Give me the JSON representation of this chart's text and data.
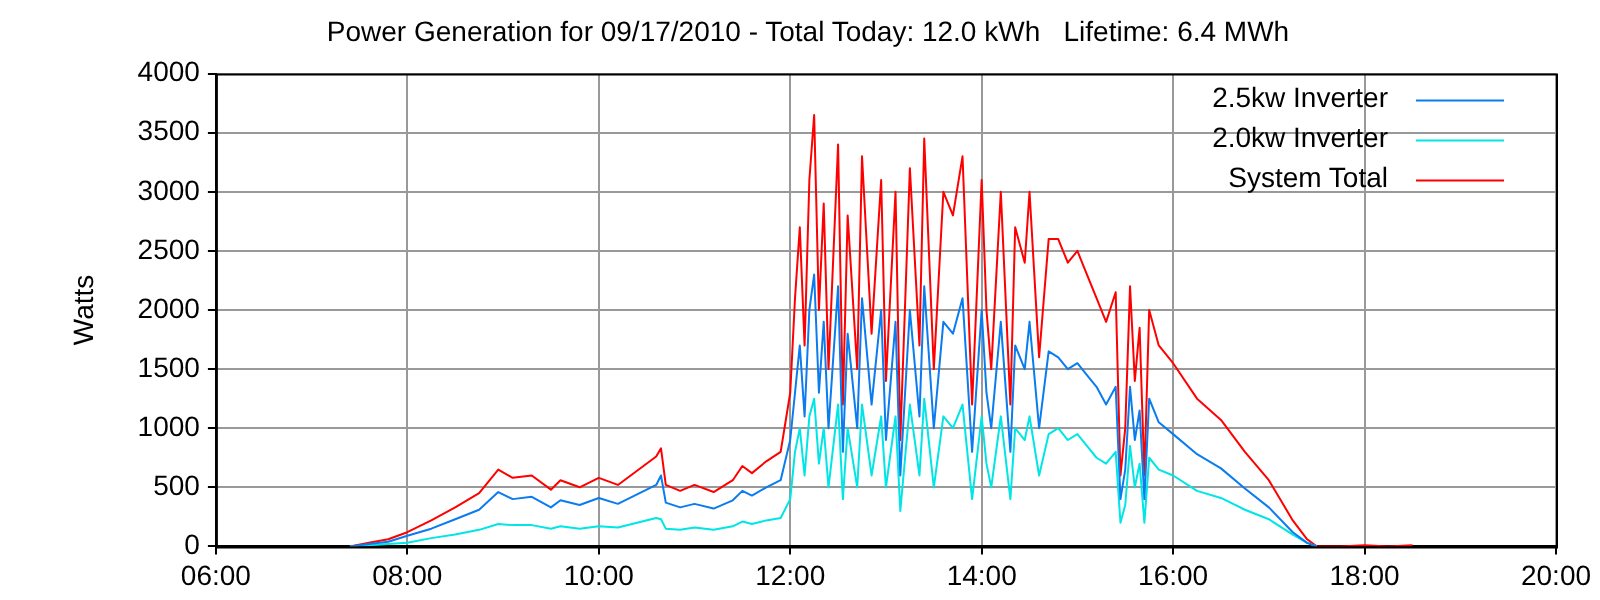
{
  "chart_data": {
    "type": "line",
    "title": "Power Generation for 09/17/2010 - Total Today: 12.0 kWh   Lifetime: 6.4 MWh",
    "ylabel": "Watts",
    "x": [
      7.4,
      7.6,
      7.8,
      8.0,
      8.25,
      8.5,
      8.75,
      8.95,
      9.1,
      9.3,
      9.5,
      9.6,
      9.8,
      10.0,
      10.2,
      10.4,
      10.6,
      10.65,
      10.7,
      10.85,
      11.0,
      11.2,
      11.4,
      11.5,
      11.6,
      11.75,
      11.9,
      12.0,
      12.05,
      12.1,
      12.15,
      12.2,
      12.25,
      12.3,
      12.35,
      12.4,
      12.5,
      12.55,
      12.6,
      12.7,
      12.75,
      12.85,
      12.95,
      13.0,
      13.1,
      13.15,
      13.25,
      13.35,
      13.4,
      13.5,
      13.6,
      13.7,
      13.8,
      13.9,
      14.0,
      14.05,
      14.1,
      14.2,
      14.3,
      14.35,
      14.45,
      14.5,
      14.6,
      14.7,
      14.8,
      14.9,
      15.0,
      15.1,
      15.2,
      15.3,
      15.4,
      15.45,
      15.5,
      15.55,
      15.6,
      15.65,
      15.7,
      15.75,
      15.85,
      16.0,
      16.25,
      16.5,
      16.75,
      17.0,
      17.25,
      17.4,
      17.5,
      17.75,
      18.0,
      18.25,
      18.5
    ],
    "series": [
      {
        "name": "2.5kw Inverter",
        "color": "#0a7cf0",
        "values": [
          0,
          20,
          40,
          90,
          150,
          230,
          310,
          460,
          400,
          420,
          330,
          390,
          350,
          410,
          360,
          440,
          520,
          600,
          370,
          330,
          360,
          320,
          390,
          470,
          430,
          500,
          560,
          900,
          1300,
          1700,
          1100,
          2000,
          2300,
          1300,
          1900,
          1000,
          2200,
          800,
          1800,
          1000,
          2100,
          1200,
          2000,
          900,
          1900,
          600,
          2000,
          1100,
          2200,
          1000,
          1900,
          1800,
          2100,
          800,
          2000,
          1300,
          1000,
          1900,
          800,
          1700,
          1500,
          1900,
          1000,
          1650,
          1600,
          1500,
          1550,
          1450,
          1350,
          1200,
          1350,
          400,
          650,
          1350,
          900,
          1150,
          400,
          1250,
          1050,
          950,
          780,
          660,
          490,
          330,
          120,
          30,
          0,
          null,
          null,
          null,
          null
        ]
      },
      {
        "name": "2.0kw Inverter",
        "color": "#00e5e5",
        "values": [
          0,
          10,
          20,
          30,
          70,
          100,
          140,
          190,
          180,
          180,
          150,
          170,
          150,
          170,
          160,
          200,
          240,
          230,
          150,
          140,
          160,
          140,
          170,
          210,
          190,
          220,
          240,
          400,
          800,
          1000,
          600,
          1100,
          1250,
          700,
          1000,
          500,
          1200,
          400,
          1000,
          500,
          1200,
          600,
          1100,
          500,
          1100,
          300,
          1200,
          600,
          1250,
          500,
          1100,
          1000,
          1200,
          400,
          1100,
          700,
          500,
          1100,
          400,
          1000,
          900,
          1100,
          600,
          950,
          1000,
          900,
          950,
          850,
          750,
          700,
          800,
          200,
          350,
          850,
          500,
          700,
          200,
          750,
          650,
          600,
          470,
          410,
          310,
          230,
          100,
          30,
          0,
          null,
          null,
          null,
          null
        ]
      },
      {
        "name": "System Total",
        "color": "#ff0000",
        "values": [
          0,
          30,
          60,
          120,
          220,
          330,
          450,
          650,
          580,
          600,
          480,
          560,
          500,
          580,
          520,
          640,
          760,
          830,
          520,
          470,
          520,
          460,
          560,
          680,
          620,
          720,
          800,
          1300,
          2100,
          2700,
          1700,
          3100,
          3650,
          2000,
          2900,
          1500,
          3400,
          1200,
          2800,
          1500,
          3300,
          1800,
          3100,
          1400,
          3000,
          900,
          3200,
          1700,
          3450,
          1500,
          3000,
          2800,
          3300,
          1200,
          3100,
          2000,
          1500,
          3000,
          1200,
          2700,
          2400,
          3000,
          1600,
          2600,
          2600,
          2400,
          2500,
          2300,
          2100,
          1900,
          2150,
          600,
          1000,
          2200,
          1400,
          1850,
          600,
          2000,
          1700,
          1550,
          1250,
          1070,
          800,
          560,
          220,
          60,
          0,
          0,
          10,
          0,
          10
        ]
      }
    ],
    "xlim": [
      6,
      20
    ],
    "xticks": [
      {
        "value": 6,
        "label": "06:00"
      },
      {
        "value": 8,
        "label": "08:00"
      },
      {
        "value": 10,
        "label": "10:00"
      },
      {
        "value": 12,
        "label": "12:00"
      },
      {
        "value": 14,
        "label": "14:00"
      },
      {
        "value": 16,
        "label": "16:00"
      },
      {
        "value": 18,
        "label": "18:00"
      },
      {
        "value": 20,
        "label": "20:00"
      }
    ],
    "ylim": [
      0,
      4000
    ],
    "yticks": [
      0,
      500,
      1000,
      1500,
      2000,
      2500,
      3000,
      3500,
      4000
    ],
    "grid": true,
    "legend": "top right",
    "marker": "none",
    "line_style": "solid"
  }
}
